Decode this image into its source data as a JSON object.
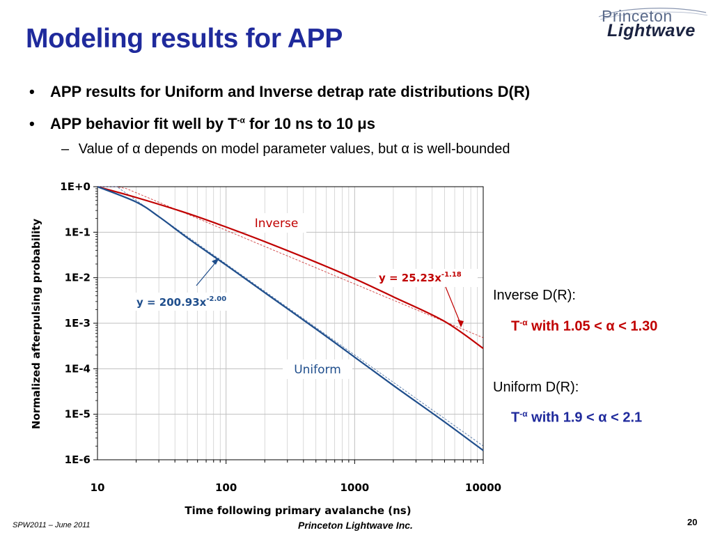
{
  "slide": {
    "title": "Modeling results for APP",
    "logo_line1": "Princeton",
    "logo_line2": "Lightwave",
    "bullet1": "APP results for Uniform and Inverse detrap rate distributions D(R)",
    "bullet2_prefix": "APP behavior fit well by T",
    "bullet2_sup": "-α",
    "bullet2_suffix": " for 10 ns to 10 μs",
    "sub_dash": "–",
    "sub1": "Value of α depends on model parameter values, but α is well-bounded",
    "bullet_glyph": "•",
    "side_inverse_head": "Inverse D(R):",
    "side_inverse_T": "T",
    "side_inverse_sup": "-α",
    "side_inverse_range": " with 1.05 < α < 1.30",
    "side_uniform_head": "Uniform D(R):",
    "side_uniform_T": "T",
    "side_uniform_sup": "-α",
    "side_uniform_range": " with 1.9 < α < 2.1",
    "footer_left": "SPW2011 – June 2011",
    "footer_center": "Princeton Lightwave Inc.",
    "page_number": "20"
  },
  "colors": {
    "title": "#1f2a9c",
    "inverse": "#c00000",
    "uniform": "#1f4e8c",
    "fit_dashed": "#6a8fb5",
    "grid": "#bfbfbf"
  },
  "chart_data": {
    "type": "line",
    "x_scale": "log",
    "y_scale": "log",
    "xlim": [
      10,
      10000
    ],
    "ylim": [
      1e-06,
      1
    ],
    "xlabel": "Time following primary avalanche (ns)",
    "ylabel": "Normalized afterpulsing probability",
    "x_ticks": [
      "10",
      "100",
      "1000",
      "10000"
    ],
    "y_ticks": [
      "1E+0",
      "1E-1",
      "1E-2",
      "1E-3",
      "1E-4",
      "1E-5",
      "1E-6"
    ],
    "grid": true,
    "series": [
      {
        "name": "Inverse",
        "color": "#c00000",
        "x": [
          10,
          20,
          50,
          100,
          200,
          500,
          1000,
          2000,
          5000,
          10000
        ],
        "y": [
          1.0,
          0.58,
          0.26,
          0.13,
          0.062,
          0.022,
          0.0095,
          0.0038,
          0.0011,
          0.00028
        ]
      },
      {
        "name": "Uniform",
        "color": "#1f4e8c",
        "x": [
          10,
          20,
          30,
          50,
          100,
          200,
          500,
          1000,
          2000,
          5000,
          10000
        ],
        "y": [
          1.0,
          0.46,
          0.22,
          0.075,
          0.019,
          0.0047,
          0.00075,
          0.00018,
          4.3e-05,
          6.8e-06,
          1.6e-06
        ]
      }
    ],
    "fits": [
      {
        "series": "Inverse",
        "label": "y = 25.23x",
        "exp_label": "-1.18",
        "coef": 25.23,
        "exponent": -1.18,
        "x_range": [
          10,
          10000
        ],
        "style": "dashed"
      },
      {
        "series": "Uniform",
        "label": "y = 200.93x",
        "exp_label": "-2.00",
        "coef": 200.93,
        "exponent": -2.0,
        "x_range": [
          10,
          10000
        ],
        "style": "dashed"
      }
    ],
    "annotations": {
      "inverse_label": "Inverse",
      "uniform_label": "Uniform"
    }
  }
}
